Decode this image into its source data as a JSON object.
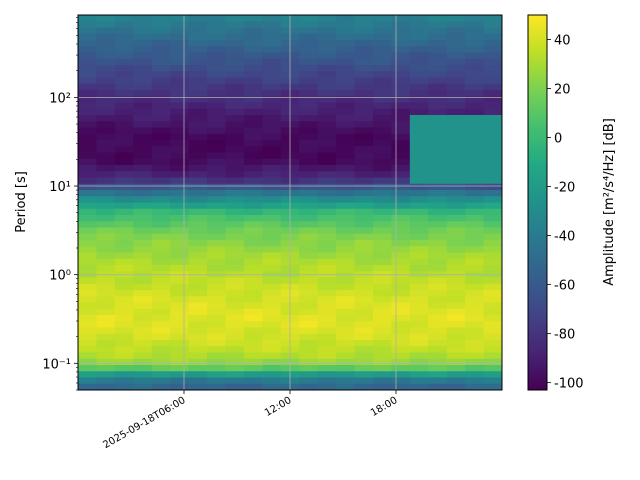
{
  "chart_data": {
    "type": "heatmap",
    "title": "",
    "ylabel": "Period [s]",
    "xlabel": "",
    "colorbar_label": "Amplitude [m²/s⁴/Hz] [dB]",
    "colormap": "viridis",
    "color_range": [
      -103,
      50
    ],
    "colorbar_ticks": [
      40,
      20,
      0,
      -20,
      -40,
      -60,
      -80,
      -100
    ],
    "x_range": [
      "2025-09-18T00:00",
      "2025-09-19T00:00"
    ],
    "x_ticks": [
      {
        "at": "2025-09-18T06:00",
        "label": "2025-09-18T06:00"
      },
      {
        "at": "2025-09-18T12:00",
        "label": "12:00"
      },
      {
        "at": "2025-09-18T18:00",
        "label": "18:00"
      }
    ],
    "y_scale": "log",
    "y_range": [
      0.05,
      850
    ],
    "y_ticks": [
      {
        "value": 0.1,
        "label": "10⁻¹"
      },
      {
        "value": 1,
        "label": "10⁰"
      },
      {
        "value": 10,
        "label": "10¹"
      },
      {
        "value": 100,
        "label": "10²"
      }
    ],
    "grid": true,
    "time_columns": 23,
    "period_profile": [
      {
        "period": 0.05,
        "amplitude_db": -55
      },
      {
        "period": 0.058,
        "amplitude_db": -50
      },
      {
        "period": 0.065,
        "amplitude_db": -40
      },
      {
        "period": 0.075,
        "amplitude_db": -20
      },
      {
        "period": 0.085,
        "amplitude_db": 8
      },
      {
        "period": 0.1,
        "amplitude_db": 25
      },
      {
        "period": 0.13,
        "amplitude_db": 34
      },
      {
        "period": 0.2,
        "amplitude_db": 40
      },
      {
        "period": 0.3,
        "amplitude_db": 43
      },
      {
        "period": 0.5,
        "amplitude_db": 41
      },
      {
        "period": 0.8,
        "amplitude_db": 36
      },
      {
        "period": 1.5,
        "amplitude_db": 30
      },
      {
        "period": 3,
        "amplitude_db": 18
      },
      {
        "period": 5,
        "amplitude_db": 0
      },
      {
        "period": 8,
        "amplitude_db": -40
      },
      {
        "period": 12,
        "amplitude_db": -85
      },
      {
        "period": 20,
        "amplitude_db": -100
      },
      {
        "period": 35,
        "amplitude_db": -100
      },
      {
        "period": 60,
        "amplitude_db": -92
      },
      {
        "period": 120,
        "amplitude_db": -80
      },
      {
        "period": 300,
        "amplitude_db": -60
      },
      {
        "period": 850,
        "amplitude_db": -35
      }
    ],
    "annotated_feature": {
      "description": "elevated energy at 10–60 s periods after 18:00",
      "start": "2025-09-18T18:30",
      "period_range": [
        10,
        60
      ],
      "amplitude_db": -25
    }
  }
}
